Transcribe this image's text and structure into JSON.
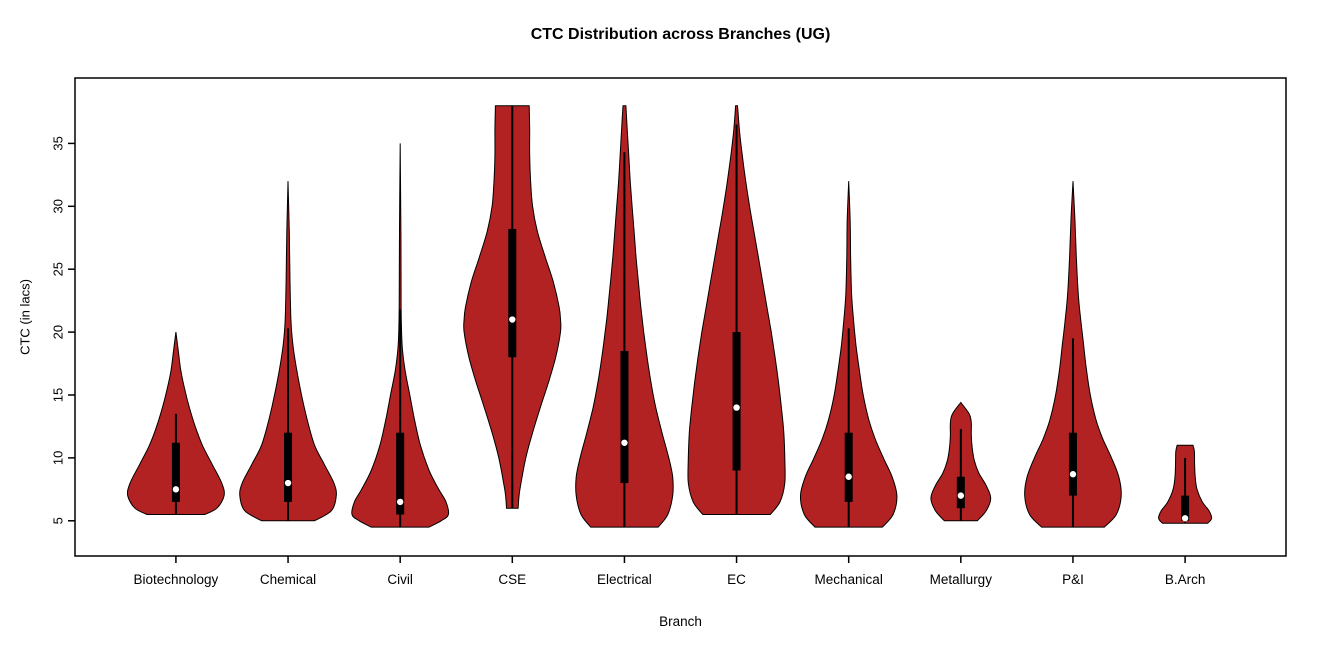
{
  "chart_data": {
    "type": "violin",
    "title": "CTC Distribution across Branches (UG)",
    "xlabel": "Branch",
    "ylabel": "CTC (in lacs)",
    "y_ticks": [
      5,
      10,
      15,
      20,
      25,
      30,
      35
    ],
    "y_range": [
      2.2,
      40.2
    ],
    "grid": false,
    "violin_fill": "#b22222",
    "violin_stroke": "#000000",
    "box_color": "#000000",
    "median_color": "#ffffff",
    "categories": [
      "Biotechnology",
      "Chemical",
      "Civil",
      "CSE",
      "Electrical",
      "EC",
      "Mechanical",
      "Metallurgy",
      "P&I",
      "B.Arch"
    ],
    "violins": [
      {
        "branch": "Biotechnology",
        "min": 5.5,
        "q1": 6.5,
        "median": 7.5,
        "q3": 11.2,
        "max": 20,
        "whisker_low": 5.5,
        "whisker_high": 13.5,
        "width_scale": 1.0,
        "profile": [
          [
            5.5,
            0.6
          ],
          [
            6,
            0.85
          ],
          [
            7,
            1.0
          ],
          [
            8,
            0.95
          ],
          [
            9.5,
            0.75
          ],
          [
            11,
            0.55
          ],
          [
            12.5,
            0.4
          ],
          [
            14,
            0.28
          ],
          [
            15.5,
            0.18
          ],
          [
            17,
            0.1
          ],
          [
            18.5,
            0.05
          ],
          [
            20,
            0
          ]
        ]
      },
      {
        "branch": "Chemical",
        "min": 5,
        "q1": 6.5,
        "median": 8,
        "q3": 12,
        "max": 32,
        "whisker_low": 5,
        "whisker_high": 20.3,
        "width_scale": 1.0,
        "profile": [
          [
            5,
            0.55
          ],
          [
            5.8,
            0.9
          ],
          [
            7,
            1.0
          ],
          [
            8,
            0.95
          ],
          [
            9.5,
            0.75
          ],
          [
            11,
            0.55
          ],
          [
            13,
            0.4
          ],
          [
            15,
            0.28
          ],
          [
            17,
            0.18
          ],
          [
            19,
            0.1
          ],
          [
            21,
            0.06
          ],
          [
            24,
            0.04
          ],
          [
            28,
            0.025
          ],
          [
            32,
            0
          ]
        ]
      },
      {
        "branch": "Civil",
        "min": 4.5,
        "q1": 5.5,
        "median": 6.5,
        "q3": 12,
        "max": 35,
        "whisker_low": 4.5,
        "whisker_high": 21.8,
        "width_scale": 1.0,
        "profile": [
          [
            4.5,
            0.6
          ],
          [
            5,
            0.85
          ],
          [
            5.5,
            1.0
          ],
          [
            6.5,
            0.95
          ],
          [
            7.5,
            0.8
          ],
          [
            9,
            0.6
          ],
          [
            11,
            0.42
          ],
          [
            13,
            0.3
          ],
          [
            15,
            0.2
          ],
          [
            17,
            0.1
          ],
          [
            19,
            0.04
          ],
          [
            22,
            0.02
          ],
          [
            28,
            0.015
          ],
          [
            35,
            0
          ]
        ]
      },
      {
        "branch": "CSE",
        "min": 6,
        "q1": 18,
        "median": 21,
        "q3": 28.2,
        "max": 38,
        "whisker_low": 6,
        "whisker_high": 38,
        "width_scale": 1.0,
        "profile": [
          [
            6,
            0.12
          ],
          [
            7,
            0.14
          ],
          [
            8,
            0.18
          ],
          [
            10,
            0.28
          ],
          [
            12,
            0.42
          ],
          [
            14,
            0.58
          ],
          [
            16,
            0.75
          ],
          [
            18,
            0.9
          ],
          [
            20,
            1.0
          ],
          [
            21,
            1.0
          ],
          [
            22,
            0.97
          ],
          [
            24,
            0.85
          ],
          [
            26,
            0.68
          ],
          [
            28,
            0.52
          ],
          [
            30,
            0.42
          ],
          [
            32,
            0.38
          ],
          [
            34,
            0.36
          ],
          [
            36,
            0.36
          ],
          [
            38,
            0.35
          ]
        ]
      },
      {
        "branch": "Electrical",
        "min": 4.5,
        "q1": 8,
        "median": 11.2,
        "q3": 18.5,
        "max": 38,
        "whisker_low": 4.5,
        "whisker_high": 34.3,
        "width_scale": 1.0,
        "profile": [
          [
            4.5,
            0.7
          ],
          [
            5.5,
            0.9
          ],
          [
            7,
            1.0
          ],
          [
            8.5,
            1.0
          ],
          [
            10,
            0.92
          ],
          [
            12,
            0.78
          ],
          [
            14,
            0.65
          ],
          [
            16,
            0.55
          ],
          [
            18,
            0.47
          ],
          [
            20,
            0.4
          ],
          [
            22,
            0.34
          ],
          [
            24,
            0.29
          ],
          [
            26,
            0.24
          ],
          [
            28,
            0.2
          ],
          [
            30,
            0.16
          ],
          [
            32,
            0.12
          ],
          [
            34,
            0.09
          ],
          [
            36,
            0.06
          ],
          [
            38,
            0.03
          ]
        ]
      },
      {
        "branch": "EC",
        "min": 5.5,
        "q1": 9,
        "median": 14,
        "q3": 20,
        "max": 38,
        "whisker_low": 5.5,
        "whisker_high": 36.5,
        "width_scale": 1.0,
        "profile": [
          [
            5.5,
            0.7
          ],
          [
            6.5,
            0.9
          ],
          [
            8,
            1.0
          ],
          [
            10,
            1.0
          ],
          [
            12,
            0.98
          ],
          [
            14,
            0.93
          ],
          [
            16,
            0.87
          ],
          [
            18,
            0.8
          ],
          [
            20,
            0.72
          ],
          [
            22,
            0.63
          ],
          [
            24,
            0.54
          ],
          [
            26,
            0.45
          ],
          [
            28,
            0.36
          ],
          [
            30,
            0.27
          ],
          [
            32,
            0.19
          ],
          [
            34,
            0.12
          ],
          [
            36,
            0.06
          ],
          [
            38,
            0.02
          ]
        ]
      },
      {
        "branch": "Mechanical",
        "min": 4.5,
        "q1": 6.5,
        "median": 8.5,
        "q3": 12,
        "max": 32,
        "whisker_low": 4.5,
        "whisker_high": 20.3,
        "width_scale": 1.0,
        "profile": [
          [
            4.5,
            0.7
          ],
          [
            5.5,
            0.92
          ],
          [
            7,
            1.0
          ],
          [
            8.5,
            0.9
          ],
          [
            10,
            0.72
          ],
          [
            11.5,
            0.55
          ],
          [
            13,
            0.42
          ],
          [
            15,
            0.3
          ],
          [
            17,
            0.22
          ],
          [
            19,
            0.15
          ],
          [
            21,
            0.1
          ],
          [
            23,
            0.06
          ],
          [
            26,
            0.04
          ],
          [
            29,
            0.03
          ],
          [
            32,
            0
          ]
        ]
      },
      {
        "branch": "Metallurgy",
        "min": 5,
        "q1": 6,
        "median": 7,
        "q3": 8.5,
        "max": 14.5,
        "whisker_low": 5,
        "whisker_high": 12.3,
        "width_scale": 0.62,
        "profile": [
          [
            5,
            0.55
          ],
          [
            5.8,
            0.85
          ],
          [
            6.8,
            1.0
          ],
          [
            7.8,
            0.85
          ],
          [
            8.8,
            0.6
          ],
          [
            9.8,
            0.45
          ],
          [
            10.8,
            0.38
          ],
          [
            11.8,
            0.35
          ],
          [
            12.8,
            0.35
          ],
          [
            13.5,
            0.28
          ],
          [
            14.4,
            0
          ]
        ]
      },
      {
        "branch": "P&I",
        "min": 4.5,
        "q1": 7,
        "median": 8.7,
        "q3": 12,
        "max": 32,
        "whisker_low": 4.5,
        "whisker_high": 19.5,
        "width_scale": 1.0,
        "profile": [
          [
            4.5,
            0.65
          ],
          [
            5.5,
            0.9
          ],
          [
            7,
            1.0
          ],
          [
            8.5,
            0.95
          ],
          [
            10,
            0.8
          ],
          [
            11.5,
            0.62
          ],
          [
            13,
            0.48
          ],
          [
            15,
            0.36
          ],
          [
            17,
            0.28
          ],
          [
            19,
            0.22
          ],
          [
            21,
            0.16
          ],
          [
            23,
            0.11
          ],
          [
            26,
            0.07
          ],
          [
            29,
            0.04
          ],
          [
            32,
            0
          ]
        ]
      },
      {
        "branch": "B.Arch",
        "min": 4.8,
        "q1": 5,
        "median": 5.2,
        "q3": 7,
        "max": 11,
        "whisker_low": 4.8,
        "whisker_high": 10,
        "width_scale": 0.55,
        "profile": [
          [
            4.8,
            0.85
          ],
          [
            5.2,
            1.0
          ],
          [
            5.8,
            0.9
          ],
          [
            6.5,
            0.65
          ],
          [
            7.5,
            0.45
          ],
          [
            8.5,
            0.38
          ],
          [
            9.5,
            0.36
          ],
          [
            10.5,
            0.35
          ],
          [
            11,
            0.3
          ]
        ]
      }
    ]
  }
}
